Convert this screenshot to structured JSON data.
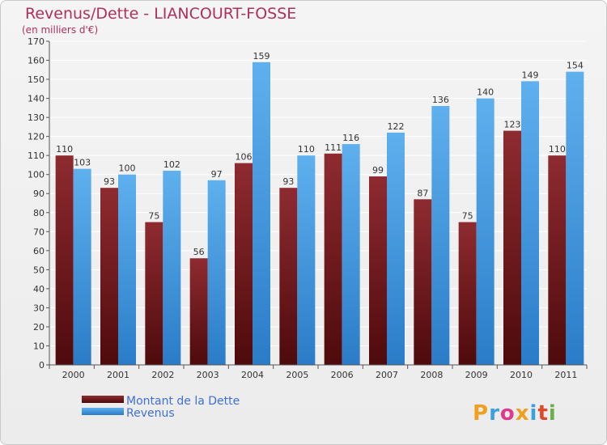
{
  "chart_data": {
    "type": "bar",
    "title": "Revenus/Dette - LIANCOURT-FOSSE",
    "subtitle": "(en milliers d'€)",
    "categories": [
      "2000",
      "2001",
      "2002",
      "2003",
      "2004",
      "2005",
      "2006",
      "2007",
      "2008",
      "2009",
      "2010",
      "2011"
    ],
    "series": [
      {
        "name": "Montant de la Dette",
        "values": [
          110,
          93,
          75,
          56,
          106,
          93,
          111,
          99,
          87,
          75,
          123,
          110
        ],
        "color": "#7a1e22"
      },
      {
        "name": "Revenus",
        "values": [
          103,
          100,
          102,
          97,
          159,
          110,
          116,
          122,
          136,
          140,
          149,
          154
        ],
        "color": "#4a9fe0"
      }
    ],
    "ylim": [
      0,
      170
    ],
    "ytick_step": 10,
    "grid": true,
    "legend": "bottom-left"
  },
  "colors": {
    "title": "#b0305a",
    "legend_text": "#3f6fd8",
    "dette_light": "#8e2b30",
    "dette_dark": "#4e0a0c",
    "revenus_light": "#5fb0ee",
    "revenus_dark": "#2a7cc8",
    "grid": "#ffffff",
    "axis": "#555555"
  },
  "logo": {
    "text": "Proxiti"
  }
}
